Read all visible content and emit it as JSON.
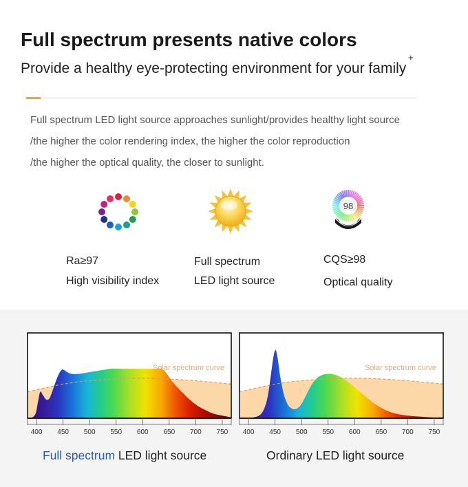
{
  "header": {
    "title": "Full spectrum presents native colors",
    "subtitle": "Provide a healthy eye-protecting environment for your family",
    "plus_mark": "+"
  },
  "colors": {
    "accent": "#f0a050",
    "caption_blue": "#2f5ca8",
    "solar_fill": "#fcd8a8",
    "solar_line": "#e29a62",
    "solar_label": "#e8a878"
  },
  "description": [
    "Full spectrum LED light source approaches sunlight/provides healthy light source",
    "/the higher the color rendering index, the higher the color reproduction",
    "/the higher the optical quality, the closer to sunlight."
  ],
  "features": [
    {
      "icon": "color-wheel-icon",
      "line1": "Ra≥97",
      "line2": "High visibility index"
    },
    {
      "icon": "sun-icon",
      "line1": "Full spectrum",
      "line2": "LED light source"
    },
    {
      "icon": "cqs-badge-icon",
      "line1": "CQS≥98",
      "line2": "Optical quality",
      "badge_text": "98"
    }
  ],
  "captions": {
    "left_highlight": "Full spectrum",
    "left_rest": " LED light source",
    "right": "Ordinary LED light source"
  },
  "chart_data": [
    {
      "type": "area",
      "xlim": [
        383,
        767
      ],
      "xticks": [
        400,
        450,
        500,
        550,
        600,
        650,
        700,
        750
      ],
      "ylim": [
        0,
        1
      ],
      "annotation": "Solar spectrum curve",
      "solar_curve": {
        "x": [
          383,
          450,
          500,
          550,
          600,
          650,
          700,
          767
        ],
        "y": [
          0.31,
          0.4,
          0.44,
          0.46,
          0.47,
          0.46,
          0.44,
          0.4
        ]
      },
      "led_curve": {
        "x": [
          390,
          398,
          403,
          407,
          412,
          418,
          424,
          430,
          438,
          445,
          450,
          458,
          466,
          480,
          500,
          520,
          540,
          560,
          580,
          600,
          620,
          635,
          642,
          650,
          660,
          675,
          690,
          705,
          720,
          735,
          750,
          767
        ],
        "y": [
          0,
          0.05,
          0.2,
          0.31,
          0.27,
          0.22,
          0.23,
          0.32,
          0.46,
          0.55,
          0.57,
          0.54,
          0.52,
          0.52,
          0.54,
          0.56,
          0.58,
          0.58,
          0.58,
          0.58,
          0.58,
          0.58,
          0.55,
          0.48,
          0.4,
          0.3,
          0.21,
          0.14,
          0.09,
          0.05,
          0.03,
          0.01
        ]
      }
    },
    {
      "type": "area",
      "xlim": [
        383,
        767
      ],
      "xticks": [
        400,
        450,
        500,
        550,
        600,
        650,
        700,
        750
      ],
      "ylim": [
        0,
        1
      ],
      "annotation": "Solar spectrum curve",
      "solar_curve": {
        "x": [
          383,
          450,
          500,
          550,
          600,
          650,
          700,
          767
        ],
        "y": [
          0.31,
          0.4,
          0.44,
          0.46,
          0.47,
          0.46,
          0.44,
          0.4
        ]
      },
      "led_curve": {
        "x": [
          383,
          410,
          425,
          435,
          442,
          447,
          451,
          455,
          460,
          467,
          475,
          483,
          490,
          498,
          507,
          517,
          527,
          540,
          555,
          568,
          580,
          595,
          610,
          625,
          640,
          660,
          680,
          700,
          720,
          745,
          767
        ],
        "y": [
          0,
          0.01,
          0.06,
          0.22,
          0.5,
          0.72,
          0.8,
          0.7,
          0.48,
          0.27,
          0.15,
          0.11,
          0.11,
          0.15,
          0.25,
          0.37,
          0.46,
          0.51,
          0.52,
          0.5,
          0.46,
          0.39,
          0.31,
          0.23,
          0.16,
          0.09,
          0.05,
          0.03,
          0.02,
          0.01,
          0.01
        ]
      }
    }
  ]
}
